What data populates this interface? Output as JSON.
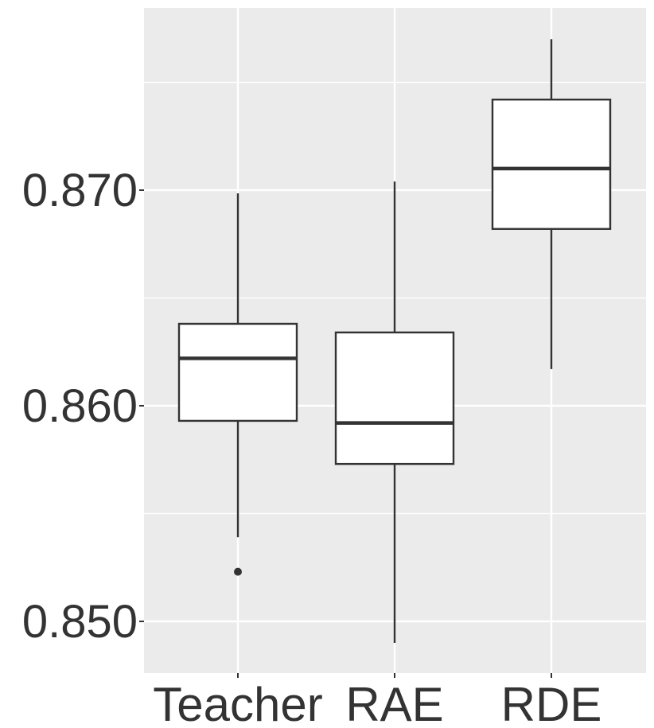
{
  "chart_data": {
    "type": "box",
    "categories": [
      "Teacher",
      "RAE",
      "RDE"
    ],
    "boxes": [
      {
        "min": 0.8539,
        "q1": 0.8593,
        "median": 0.8622,
        "q3": 0.8638,
        "max": 0.86985,
        "outliers": [
          0.8523
        ]
      },
      {
        "min": 0.849,
        "q1": 0.8573,
        "median": 0.8592,
        "q3": 0.8634,
        "max": 0.8704,
        "outliers": []
      },
      {
        "min": 0.8617,
        "q1": 0.8682,
        "median": 0.871,
        "q3": 0.8742,
        "max": 0.877,
        "outliers": []
      }
    ],
    "ylim": [
      0.8476,
      0.87845
    ],
    "yticks": [
      {
        "value": 0.85,
        "label": "0.850"
      },
      {
        "value": 0.86,
        "label": "0.860"
      },
      {
        "value": 0.87,
        "label": "0.870"
      }
    ],
    "minor_yticks": [
      0.855,
      0.865,
      0.875
    ],
    "grid": true,
    "panel_color": "#ebebeb",
    "box_fill": "#ffffff",
    "line_color": "#333333"
  }
}
